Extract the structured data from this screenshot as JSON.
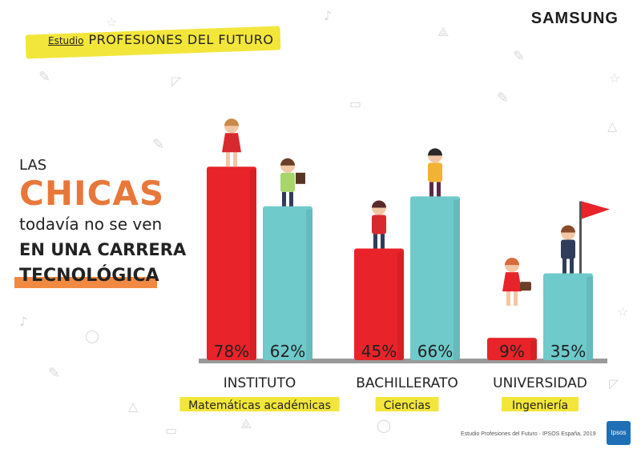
{
  "brand": "SAMSUNG",
  "header": {
    "study_label": "Estudio",
    "study_title": "PROFESIONES DEL FUTURO"
  },
  "headline": {
    "las": "LAS",
    "chicas": "CHICAS",
    "line2": "todavía no se ven",
    "line3": "EN UNA CARRERA",
    "line4": "TECNOLÓGICA"
  },
  "footer_note": "Estudio Profesiones del Futuro · IPSOS España, 2019",
  "ipsos_logo": "Ipsos",
  "colors": {
    "girls": "#e8232a",
    "boys": "#6fcacb",
    "highlight": "#f3e63a",
    "accent": "#e8783a",
    "floor": "#9a9a9a"
  },
  "chart_data": {
    "type": "bar",
    "categories": [
      "INSTITUTO",
      "BACHILLERATO",
      "UNIVERSIDAD"
    ],
    "subcategories": [
      "Matemáticas académicas",
      "Ciencias",
      "Ingeniería"
    ],
    "series": [
      {
        "values": [
          78,
          45,
          9
        ],
        "labels": [
          "78%",
          "45%",
          "9%"
        ],
        "color": "#e8232a"
      },
      {
        "values": [
          62,
          66,
          35
        ],
        "labels": [
          "62%",
          "66%",
          "35%"
        ],
        "color": "#6fcacb"
      }
    ],
    "ylim": [
      0,
      100
    ],
    "grid": false,
    "legend": "none"
  }
}
